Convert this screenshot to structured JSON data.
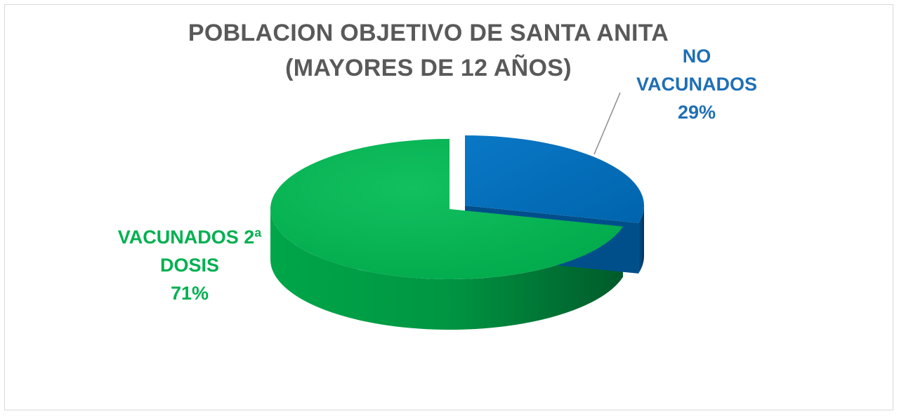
{
  "chart_data": {
    "type": "pie",
    "style": "3d-exploded",
    "title_lines": [
      "POBLACION OBJETIVO DE SANTA ANITA",
      "(MAYORES DE 12 AÑOS)"
    ],
    "slices": [
      {
        "label_lines": [
          "NO",
          "VACUNADOS"
        ],
        "value": 29,
        "percent_label": "29%",
        "color": "#0070c0",
        "side_color": "#004f8a",
        "label_color": "#1f6fb5"
      },
      {
        "label_lines": [
          "VACUNADOS 2ª",
          "DOSIS"
        ],
        "value": 71,
        "percent_label": "71%",
        "color": "#00b050",
        "side_color": "#00803a",
        "label_color": "#00b050"
      }
    ],
    "leader_line_color": "#8c8c8c"
  }
}
